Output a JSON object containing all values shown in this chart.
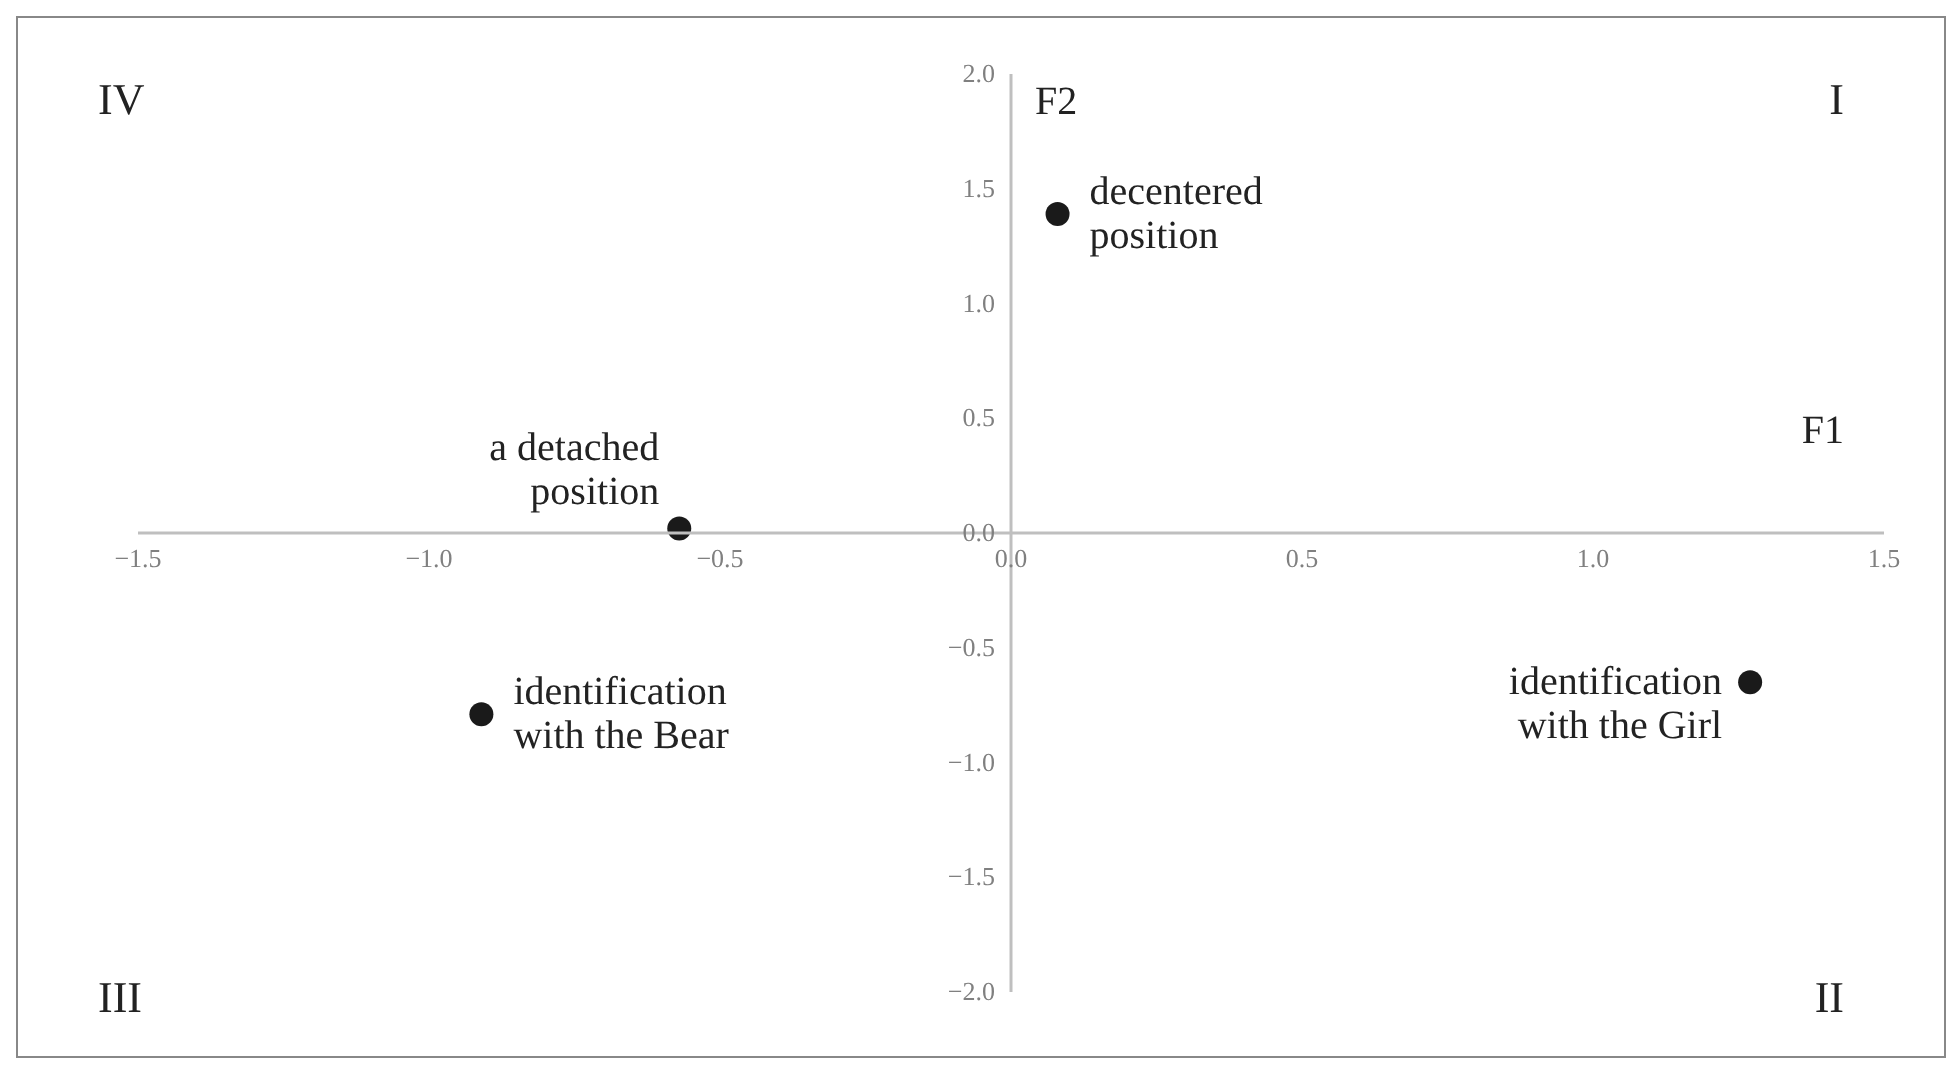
{
  "chart_data": {
    "type": "scatter",
    "xlabel": "F1",
    "ylabel": "F2",
    "x": [
      0.08,
      -0.57,
      -0.91,
      1.27
    ],
    "series": [
      {
        "color": "#1a1a1a",
        "values": [
          1.39,
          0.02,
          -0.79,
          -0.65
        ]
      }
    ],
    "marker": "circle",
    "xlim": [
      -1.5,
      1.5
    ],
    "xticks": [
      {
        "value": -1.5,
        "label": "−1.5"
      },
      {
        "value": -1,
        "label": "−1.0"
      },
      {
        "value": -0.5,
        "label": "−0.5"
      },
      {
        "value": 0,
        "label": "0.0"
      },
      {
        "value": 0.5,
        "label": "0.5"
      },
      {
        "value": 1,
        "label": "1.0"
      },
      1.5
    ],
    "ylim": [
      -2,
      2
    ],
    "yticks": [
      {
        "value": -2,
        "label": "−2.0"
      },
      {
        "value": -1.5,
        "label": "−1.5"
      },
      {
        "value": -1,
        "label": "−1.0"
      },
      {
        "value": -0.5,
        "label": "−0.5"
      },
      {
        "value": 0,
        "label": "0.0"
      },
      {
        "value": 0.5,
        "label": "0.5"
      },
      {
        "value": 1,
        "label": "1.0"
      },
      1.5,
      {
        "value": 2,
        "label": "2.0"
      }
    ],
    "annotations": [
      {
        "text": "decentered position",
        "x": 0.08,
        "y": 1.39
      },
      {
        "text": "a detached position",
        "x": -0.57,
        "y": 0.02
      },
      {
        "text": "identification with the Bear",
        "x": -0.91,
        "y": -0.79
      },
      {
        "text": "identification with the Girl",
        "x": 1.27,
        "y": -0.65
      },
      "IV",
      "I",
      "III",
      "II"
    ]
  }
}
